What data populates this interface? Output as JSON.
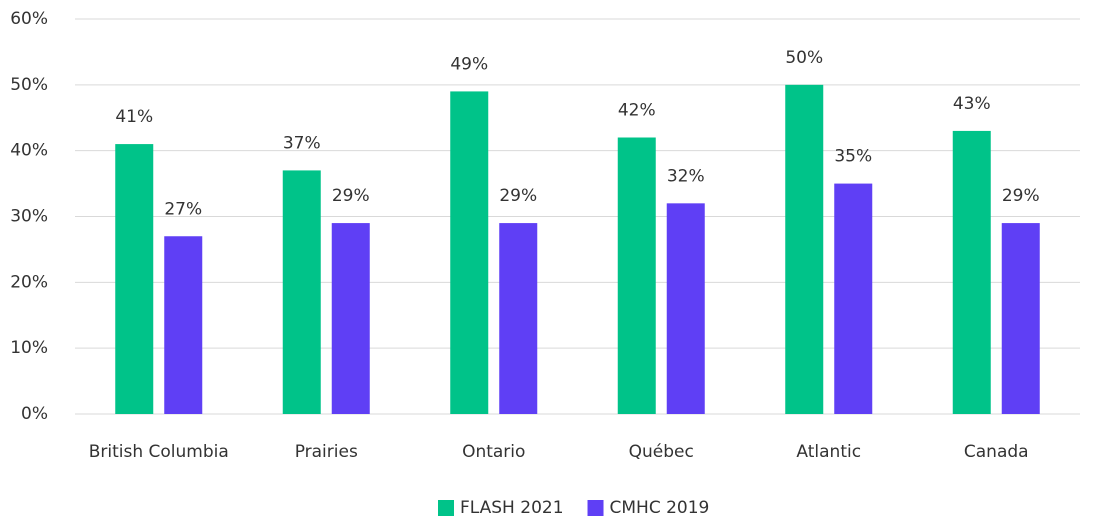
{
  "chart_data": {
    "type": "bar",
    "categories": [
      "British Columbia",
      "Prairies",
      "Ontario",
      "Québec",
      "Atlantic",
      "Canada"
    ],
    "series": [
      {
        "name": "FLASH 2021",
        "color": "#00c389",
        "values": [
          41,
          37,
          49,
          42,
          50,
          43
        ],
        "value_labels": [
          "41%",
          "37%",
          "49%",
          "42%",
          "50%",
          "43%"
        ]
      },
      {
        "name": "CMHC 2019",
        "color": "#5f3ff5",
        "values": [
          27,
          29,
          29,
          32,
          35,
          29
        ],
        "value_labels": [
          "27%",
          "29%",
          "29%",
          "32%",
          "35%",
          "29%"
        ]
      }
    ],
    "ylim": [
      0,
      60
    ],
    "yticks": [
      {
        "value": 0,
        "label": "0%"
      },
      {
        "value": 10,
        "label": "10%"
      },
      {
        "value": 20,
        "label": "20%"
      },
      {
        "value": 30,
        "label": "30%"
      },
      {
        "value": 40,
        "label": "40%"
      },
      {
        "value": 50,
        "label": "50%"
      },
      {
        "value": 60,
        "label": "60%"
      }
    ],
    "grid": true,
    "legend": "bottom"
  }
}
